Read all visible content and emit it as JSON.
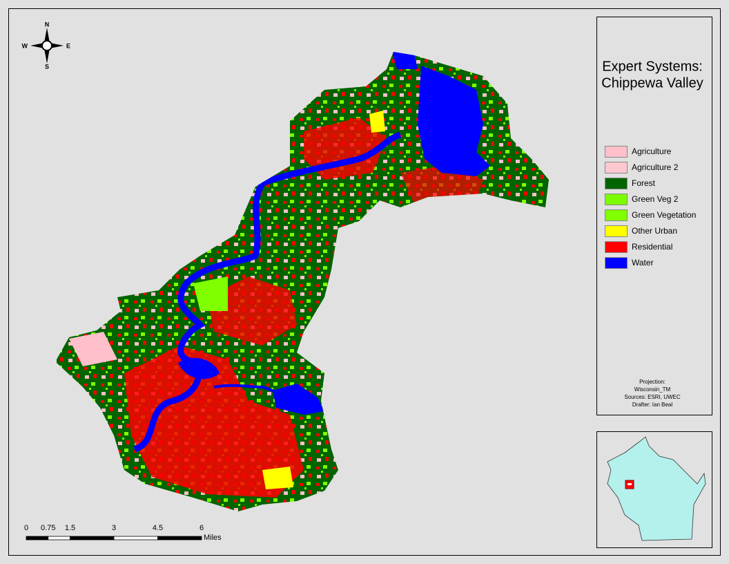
{
  "title_lines": [
    "Expert Systems:",
    "Chippewa Valley"
  ],
  "legend": [
    {
      "label": "Agriculture",
      "color": "#ffc0cb"
    },
    {
      "label": "Agriculture 2",
      "color": "#ffc8d0"
    },
    {
      "label": "Forest",
      "color": "#006400"
    },
    {
      "label": "Green Veg 2",
      "color": "#7cfc00"
    },
    {
      "label": "Green Vegetation",
      "color": "#7fff00"
    },
    {
      "label": "Other Urban",
      "color": "#ffff00"
    },
    {
      "label": "Residential",
      "color": "#ff0000"
    },
    {
      "label": "Water",
      "color": "#0000ff"
    }
  ],
  "notes": [
    "Projection:",
    "Wisconsin_TM",
    "Sources: ESRI, UWEC",
    "Drafter: Ian Beal"
  ],
  "compass": {
    "n": "N",
    "s": "S",
    "e": "E",
    "w": "W"
  },
  "scale_bar": {
    "ticks": [
      0,
      0.75,
      1.5,
      3,
      4.5,
      6
    ],
    "unit": "Miles"
  }
}
